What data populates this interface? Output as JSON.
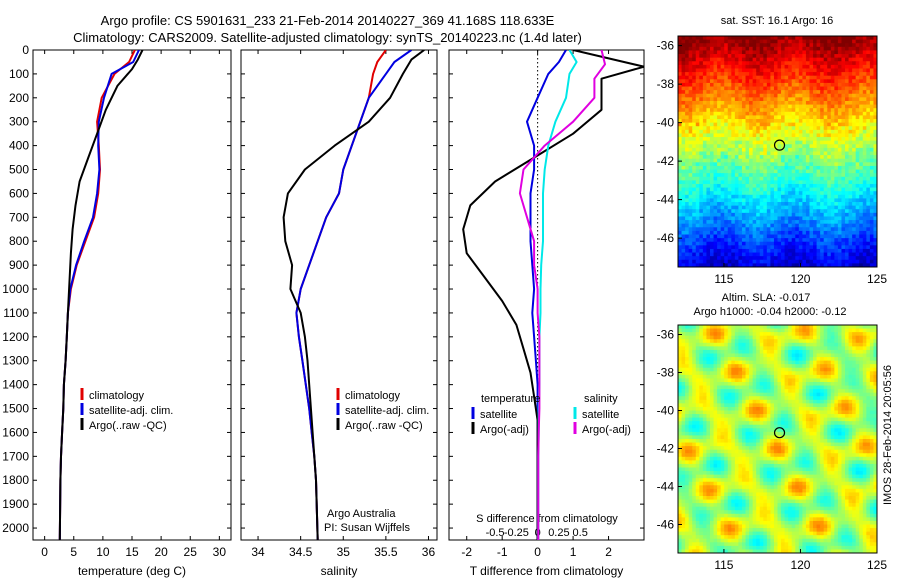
{
  "titles": {
    "line1": "Argo profile: CS 5901631_233 21-Feb-2014 20140227_369 41.168S 118.633E",
    "line2": "Climatology: CARS2009. Satellite-adjusted climatology: synTS_20140223.nc (1.4d later)"
  },
  "right_margin_text": "IMOS 28-Feb-2014 20:05:56",
  "colors": {
    "climatology": "#e00000",
    "satellite": "#0000e0",
    "argo": "#000000",
    "satellite_salinity": "#00e8e8",
    "argo_salinity_adj": "#e000e0"
  },
  "chart_data": [
    {
      "type": "line",
      "name": "temperature-profile",
      "xlabel": "temperature (deg C)",
      "ylabel": "",
      "xlim": [
        -2,
        32
      ],
      "ylim": [
        2050,
        0
      ],
      "xticks": [
        0,
        5,
        10,
        15,
        20,
        25,
        30
      ],
      "yticks": [
        0,
        100,
        200,
        300,
        400,
        500,
        600,
        700,
        800,
        900,
        1000,
        1100,
        1200,
        1300,
        1400,
        1500,
        1600,
        1700,
        1800,
        1900,
        2000
      ],
      "legend": [
        "climatology",
        "satellite-adj. clim.",
        "Argo(..raw -QC)"
      ],
      "legend_position": "lower-left",
      "series": [
        {
          "name": "climatology",
          "color": "#e00000",
          "x": [
            15.5,
            14.5,
            12.0,
            9.8,
            9.0,
            9.3,
            9.5,
            9.2,
            8.5,
            7.0,
            5.5,
            4.5,
            4.0,
            3.8,
            3.6,
            3.3,
            3.2,
            3.0,
            2.8,
            2.7,
            2.6
          ],
          "y": [
            0,
            50,
            100,
            200,
            300,
            400,
            500,
            600,
            700,
            800,
            900,
            1000,
            1100,
            1200,
            1300,
            1400,
            1500,
            1600,
            1700,
            1800,
            2050
          ]
        },
        {
          "name": "satellite-adj. clim.",
          "color": "#0000e0",
          "x": [
            16.2,
            15.2,
            11.5,
            10.2,
            9.3,
            9.2,
            9.4,
            9.0,
            8.3,
            6.8,
            5.4,
            4.4,
            4.0,
            3.8,
            3.6,
            3.3,
            3.2,
            3.0,
            2.8,
            2.7,
            2.6
          ],
          "y": [
            0,
            50,
            100,
            200,
            300,
            400,
            500,
            600,
            700,
            800,
            900,
            1000,
            1100,
            1200,
            1300,
            1400,
            1500,
            1600,
            1700,
            1800,
            2050
          ]
        },
        {
          "name": "Argo(..raw -QC)",
          "color": "#000000",
          "x": [
            16.8,
            16.0,
            15.0,
            12.5,
            10.5,
            9.0,
            7.5,
            6.0,
            5.3,
            4.8,
            4.5,
            4.3,
            4.0,
            3.8,
            3.6,
            3.3,
            3.2,
            3.0,
            2.8,
            2.7,
            2.6
          ],
          "y": [
            0,
            40,
            80,
            150,
            250,
            350,
            450,
            550,
            650,
            750,
            850,
            950,
            1100,
            1200,
            1300,
            1400,
            1500,
            1600,
            1700,
            1800,
            2050
          ]
        }
      ]
    },
    {
      "type": "line",
      "name": "salinity-profile",
      "xlabel": "salinity",
      "ylabel": "",
      "xlim": [
        33.8,
        36.1
      ],
      "ylim": [
        2050,
        0
      ],
      "xticks": [
        34,
        34.5,
        35,
        35.5,
        36
      ],
      "xticklabels": [
        "34",
        "34.5",
        "35",
        "35.5",
        "36"
      ],
      "legend": [
        "climatology",
        "satellite-adj. clim.",
        "Argo(..raw -QC)"
      ],
      "legend_position": "lower-right",
      "annotation": [
        "Argo Australia",
        "PI: Susan Wijffels"
      ],
      "series": [
        {
          "name": "climatology",
          "color": "#e00000",
          "x": [
            35.5,
            35.4,
            35.35,
            35.3,
            35.2,
            35.1,
            35.0,
            34.95,
            34.8,
            34.7,
            34.6,
            34.5,
            34.45,
            34.48,
            34.52,
            34.56,
            34.6,
            34.63,
            34.66,
            34.68,
            34.7
          ],
          "y": [
            0,
            50,
            100,
            200,
            300,
            400,
            500,
            600,
            700,
            800,
            900,
            1000,
            1100,
            1200,
            1300,
            1400,
            1500,
            1600,
            1700,
            1800,
            2050
          ]
        },
        {
          "name": "satellite-adj. clim.",
          "color": "#0000e0",
          "x": [
            35.8,
            35.6,
            35.5,
            35.3,
            35.2,
            35.1,
            35.0,
            34.95,
            34.8,
            34.7,
            34.6,
            34.5,
            34.45,
            34.48,
            34.52,
            34.56,
            34.6,
            34.63,
            34.66,
            34.68,
            34.7
          ],
          "y": [
            0,
            50,
            100,
            200,
            300,
            400,
            500,
            600,
            700,
            800,
            900,
            1000,
            1100,
            1200,
            1300,
            1400,
            1500,
            1600,
            1700,
            1800,
            2050
          ]
        },
        {
          "name": "Argo(..raw -QC)",
          "color": "#000000",
          "x": [
            35.95,
            35.8,
            35.7,
            35.55,
            35.3,
            34.9,
            34.55,
            34.35,
            34.3,
            34.32,
            34.4,
            34.38,
            34.5,
            34.55,
            34.58,
            34.6,
            34.62,
            34.64,
            34.66,
            34.68,
            34.7
          ],
          "y": [
            0,
            40,
            100,
            200,
            300,
            400,
            500,
            600,
            700,
            800,
            900,
            1000,
            1100,
            1200,
            1300,
            1400,
            1500,
            1600,
            1700,
            1800,
            2050
          ]
        }
      ]
    },
    {
      "type": "line",
      "name": "difference-profile",
      "xlabel": "T difference from climatology",
      "ylabel": "",
      "top_axis_label": "S difference from climatology",
      "xlim": [
        -2.5,
        3.0
      ],
      "ylim": [
        2050,
        0
      ],
      "xticks": [
        -2,
        -1,
        0,
        1,
        2
      ],
      "xticklabels": [
        "-2",
        "-1",
        "0",
        "1",
        "2"
      ],
      "s_ticks": [
        -0.5,
        -0.25,
        0,
        0.25,
        0.5
      ],
      "s_ticklabels": [
        "-0.5",
        "-0.25",
        "0",
        "0.25",
        "0.5"
      ],
      "legend_temperature": {
        "heading": "temperature",
        "entries": [
          "satellite",
          "Argo(-adj)"
        ]
      },
      "legend_salinity": {
        "heading": "salinity",
        "entries": [
          "satellite",
          "Argo(-adj)"
        ]
      },
      "series": [
        {
          "name": "temperature satellite",
          "color": "#0000e0",
          "x": [
            0.8,
            0.6,
            0.3,
            0.0,
            -0.3,
            -0.1,
            -0.1,
            -0.2,
            -0.2,
            -0.2,
            -0.15,
            -0.1,
            -0.15,
            -0.1,
            -0.05,
            0.0,
            0.0,
            0.0,
            0.0,
            0.0,
            0.0
          ],
          "y": [
            0,
            50,
            100,
            200,
            300,
            400,
            500,
            600,
            700,
            800,
            900,
            1000,
            1100,
            1200,
            1300,
            1400,
            1500,
            1600,
            1700,
            1800,
            2050
          ]
        },
        {
          "name": "temperature Argo(-adj)",
          "color": "#000000",
          "x": [
            1.0,
            3.0,
            1.8,
            1.8,
            1.0,
            -0.1,
            -1.2,
            -1.9,
            -2.1,
            -2.0,
            -1.5,
            -1.0,
            -0.6,
            -0.4,
            -0.2,
            -0.1,
            0.0,
            0.0,
            0.0,
            0.0,
            0.0
          ],
          "y": [
            0,
            70,
            120,
            250,
            350,
            450,
            550,
            650,
            750,
            850,
            950,
            1050,
            1150,
            1250,
            1350,
            1450,
            1550,
            1650,
            1750,
            1850,
            2050
          ]
        },
        {
          "name": "salinity satellite",
          "color": "#00e8e8",
          "x": [
            0.9,
            1.1,
            0.9,
            0.8,
            0.5,
            0.3,
            0.2,
            0.15,
            0.15,
            0.15,
            0.1,
            0.08,
            0.08,
            0.05,
            0.05,
            0.05,
            0.03,
            0.03,
            0.02,
            0.02,
            0.02
          ],
          "y": [
            0,
            50,
            100,
            200,
            300,
            400,
            500,
            600,
            700,
            800,
            900,
            1000,
            1100,
            1200,
            1300,
            1400,
            1500,
            1600,
            1700,
            1800,
            2050
          ]
        },
        {
          "name": "salinity Argo(-adj)",
          "color": "#e000e0",
          "x": [
            1.8,
            1.9,
            1.6,
            1.6,
            1.0,
            0.2,
            -0.4,
            -0.5,
            -0.3,
            -0.1,
            -0.1,
            0.0,
            0.0,
            0.05,
            0.05,
            0.05,
            0.05,
            0.03,
            0.02,
            0.02,
            0.02
          ],
          "y": [
            0,
            60,
            120,
            200,
            300,
            400,
            500,
            600,
            700,
            800,
            900,
            1000,
            1100,
            1200,
            1300,
            1400,
            1500,
            1600,
            1700,
            1800,
            2050
          ]
        }
      ]
    },
    {
      "type": "heatmap",
      "name": "sst-map",
      "title": "sat. SST: 16.1 Argo: 16",
      "xlim": [
        112,
        125
      ],
      "ylim": [
        -47.5,
        -35.5
      ],
      "xticks": [
        115,
        120,
        125
      ],
      "yticks": [
        -36,
        -38,
        -40,
        -42,
        -44,
        -46
      ],
      "marker": {
        "lon": 118.633,
        "lat": -41.168
      }
    },
    {
      "type": "heatmap",
      "name": "sla-map",
      "title": "Altim. SLA: -0.017",
      "subtitle": "Argo h1000: -0.04 h2000: -0.12",
      "xlim": [
        112,
        125
      ],
      "ylim": [
        -47.5,
        -35.5
      ],
      "xticks": [
        115,
        120,
        125
      ],
      "yticks": [
        -36,
        -38,
        -40,
        -42,
        -44,
        -46
      ],
      "marker": {
        "lon": 118.633,
        "lat": -41.168
      }
    }
  ]
}
